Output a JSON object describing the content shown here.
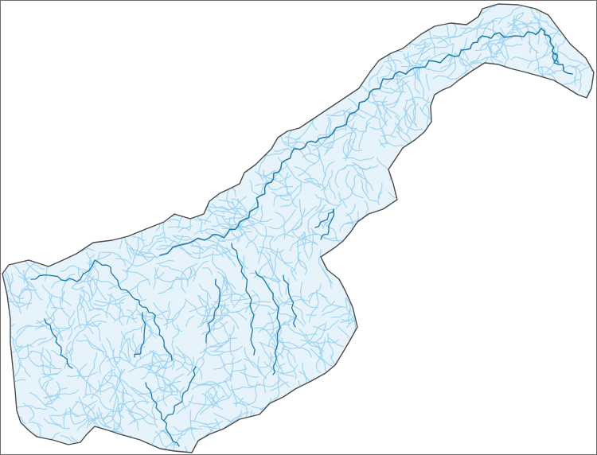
{
  "map": {
    "colors": {
      "background": "#ffffff",
      "frame": "#6e6e6e",
      "basin_fill": "#e6f3fb",
      "basin_outline": "#4a4a4a",
      "minor_streams": "#9ed3ee",
      "major_rivers": "#1e7aa6"
    },
    "layers": [
      "basin-boundary",
      "minor-streams",
      "major-rivers"
    ]
  }
}
